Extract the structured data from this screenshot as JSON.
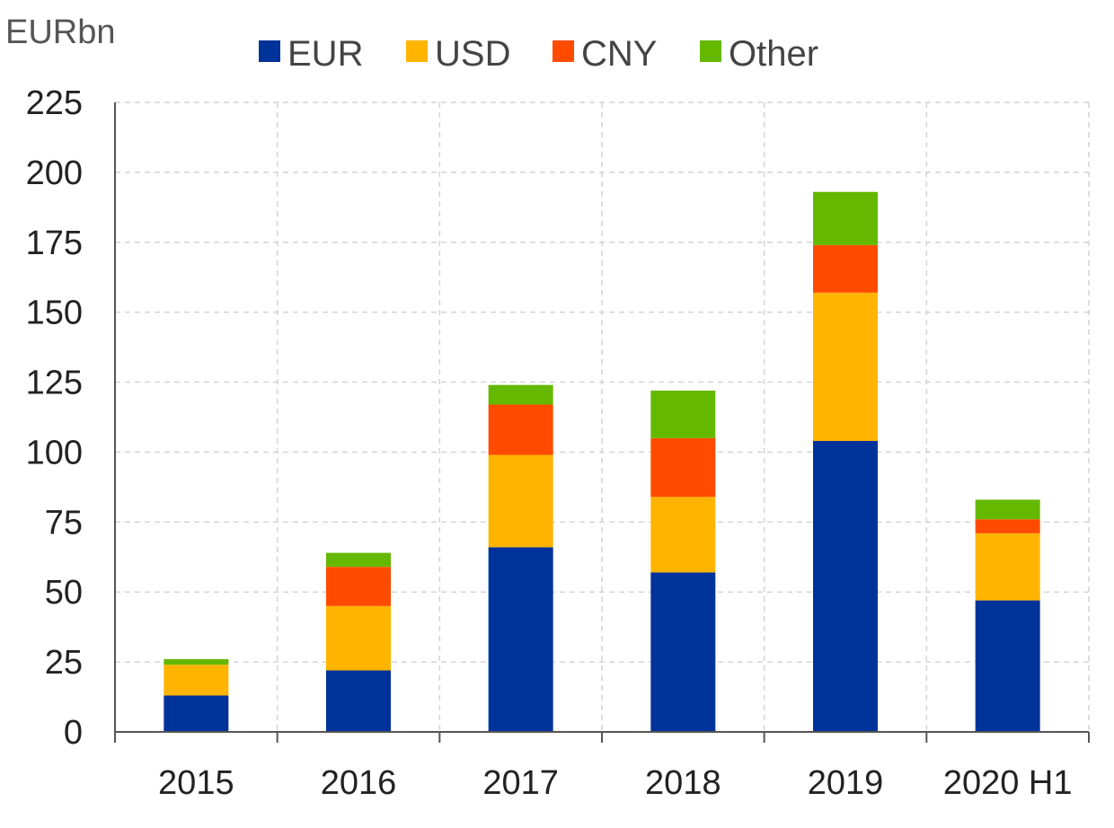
{
  "chart_data": {
    "type": "bar",
    "stacked": true,
    "title": "",
    "unit_label": "EURbn",
    "xlabel": "",
    "ylabel": "",
    "ylim": [
      0,
      225
    ],
    "yticks": [
      0,
      25,
      50,
      75,
      100,
      125,
      150,
      175,
      200,
      225
    ],
    "grid": true,
    "legend_position": "top",
    "categories": [
      "2015",
      "2016",
      "2017",
      "2018",
      "2019",
      "2020 H1"
    ],
    "series": [
      {
        "name": "EUR",
        "color": "#003399",
        "values": [
          13,
          22,
          66,
          57,
          104,
          47
        ]
      },
      {
        "name": "USD",
        "color": "#FFB400",
        "values": [
          11,
          23,
          33,
          27,
          53,
          24
        ]
      },
      {
        "name": "CNY",
        "color": "#FF4B00",
        "values": [
          0,
          14,
          18,
          21,
          17,
          5
        ]
      },
      {
        "name": "Other",
        "color": "#65B800",
        "values": [
          2,
          5,
          7,
          17,
          19,
          7
        ]
      }
    ]
  }
}
